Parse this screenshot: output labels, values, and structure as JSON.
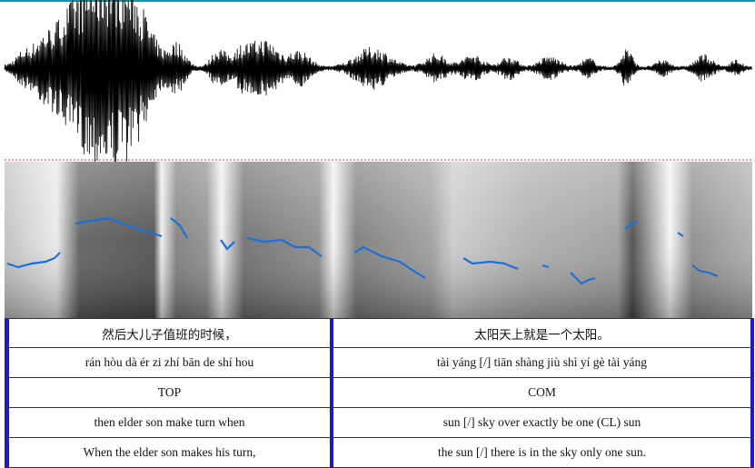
{
  "tiers": [
    {
      "intervals": [
        "然后大儿子值班的时候，",
        "太阳天上就是一个太阳。"
      ]
    },
    {
      "intervals": [
        "rán hòu dà ér zi zhí bān de shí hou",
        "tài yáng [/] tiān shàng jiù shì yí gè tài yáng"
      ]
    },
    {
      "intervals": [
        "TOP",
        "COM"
      ]
    },
    {
      "intervals": [
        "then elder son make turn when",
        "sun [/] sky over exactly be one (CL) sun"
      ]
    },
    {
      "intervals": [
        "When the elder son makes his turn,",
        "the sun [/] there is in the sky only one sun."
      ]
    }
  ]
}
